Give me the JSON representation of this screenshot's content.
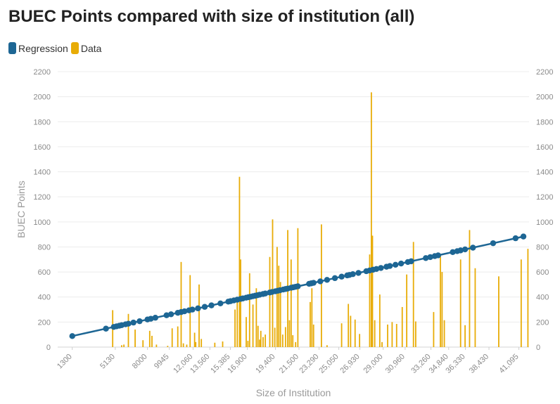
{
  "chart_data": {
    "type": "bar",
    "title": "BUEC Points compared with size of institution (all)",
    "xlabel": "Size of Institution",
    "ylabel": "BUEC Points",
    "ylim": [
      0,
      2200
    ],
    "xlim": [
      0,
      42000
    ],
    "grid": true,
    "legend": {
      "position": "top-left",
      "entries": [
        "Regression",
        "Data"
      ]
    },
    "y_ticks": [
      0,
      200,
      400,
      600,
      800,
      1000,
      1200,
      1400,
      1600,
      1800,
      2000,
      2200
    ],
    "x_ticks": [
      {
        "value": 1300,
        "label": "1300"
      },
      {
        "value": 5130,
        "label": "5130"
      },
      {
        "value": 8000,
        "label": "8000"
      },
      {
        "value": 9945,
        "label": "9945"
      },
      {
        "value": 12060,
        "label": "12,060"
      },
      {
        "value": 13560,
        "label": "13,560"
      },
      {
        "value": 15385,
        "label": "15,385"
      },
      {
        "value": 16900,
        "label": "16,900"
      },
      {
        "value": 19400,
        "label": "19,400"
      },
      {
        "value": 21500,
        "label": "21,500"
      },
      {
        "value": 23290,
        "label": "23,290"
      },
      {
        "value": 25050,
        "label": "25,050"
      },
      {
        "value": 26930,
        "label": "26,930"
      },
      {
        "value": 29000,
        "label": "29,000"
      },
      {
        "value": 30960,
        "label": "30,960"
      },
      {
        "value": 33260,
        "label": "33,260"
      },
      {
        "value": 34840,
        "label": "34,840"
      },
      {
        "value": 36330,
        "label": "36,330"
      },
      {
        "value": 38430,
        "label": "38,430"
      },
      {
        "value": 41095,
        "label": "41,095"
      }
    ],
    "series": [
      {
        "name": "Data",
        "color": "#e8ac07",
        "points": [
          {
            "x": 4900,
            "y": 295
          },
          {
            "x": 5700,
            "y": 15
          },
          {
            "x": 5900,
            "y": 20
          },
          {
            "x": 6300,
            "y": 265
          },
          {
            "x": 6900,
            "y": 140
          },
          {
            "x": 7600,
            "y": 55
          },
          {
            "x": 8200,
            "y": 130
          },
          {
            "x": 8400,
            "y": 90
          },
          {
            "x": 8800,
            "y": 20
          },
          {
            "x": 9800,
            "y": 10
          },
          {
            "x": 10200,
            "y": 150
          },
          {
            "x": 10700,
            "y": 165
          },
          {
            "x": 11000,
            "y": 680
          },
          {
            "x": 11200,
            "y": 30
          },
          {
            "x": 11500,
            "y": 20
          },
          {
            "x": 11800,
            "y": 575
          },
          {
            "x": 12200,
            "y": 115
          },
          {
            "x": 12300,
            "y": 40
          },
          {
            "x": 12600,
            "y": 500
          },
          {
            "x": 12800,
            "y": 65
          },
          {
            "x": 14000,
            "y": 35
          },
          {
            "x": 14700,
            "y": 45
          },
          {
            "x": 15800,
            "y": 300
          },
          {
            "x": 16000,
            "y": 380
          },
          {
            "x": 16200,
            "y": 1360
          },
          {
            "x": 16300,
            "y": 700
          },
          {
            "x": 16800,
            "y": 240
          },
          {
            "x": 16950,
            "y": 50
          },
          {
            "x": 17100,
            "y": 590
          },
          {
            "x": 17400,
            "y": 340
          },
          {
            "x": 17700,
            "y": 470
          },
          {
            "x": 17850,
            "y": 170
          },
          {
            "x": 18000,
            "y": 60
          },
          {
            "x": 18100,
            "y": 130
          },
          {
            "x": 18300,
            "y": 80
          },
          {
            "x": 18500,
            "y": 100
          },
          {
            "x": 18900,
            "y": 720
          },
          {
            "x": 19150,
            "y": 1020
          },
          {
            "x": 19350,
            "y": 155
          },
          {
            "x": 19550,
            "y": 800
          },
          {
            "x": 19700,
            "y": 650
          },
          {
            "x": 19850,
            "y": 520
          },
          {
            "x": 20050,
            "y": 100
          },
          {
            "x": 20300,
            "y": 160
          },
          {
            "x": 20500,
            "y": 935
          },
          {
            "x": 20650,
            "y": 215
          },
          {
            "x": 20800,
            "y": 700
          },
          {
            "x": 20950,
            "y": 95
          },
          {
            "x": 21200,
            "y": 40
          },
          {
            "x": 21400,
            "y": 950
          },
          {
            "x": 22500,
            "y": 360
          },
          {
            "x": 22650,
            "y": 470
          },
          {
            "x": 22800,
            "y": 180
          },
          {
            "x": 23500,
            "y": 980
          },
          {
            "x": 24000,
            "y": 15
          },
          {
            "x": 25300,
            "y": 190
          },
          {
            "x": 25900,
            "y": 345
          },
          {
            "x": 26100,
            "y": 250
          },
          {
            "x": 26500,
            "y": 220
          },
          {
            "x": 26900,
            "y": 105
          },
          {
            "x": 27800,
            "y": 740
          },
          {
            "x": 27950,
            "y": 2035
          },
          {
            "x": 28050,
            "y": 890
          },
          {
            "x": 28250,
            "y": 215
          },
          {
            "x": 28700,
            "y": 420
          },
          {
            "x": 28900,
            "y": 40
          },
          {
            "x": 29400,
            "y": 180
          },
          {
            "x": 29800,
            "y": 200
          },
          {
            "x": 30200,
            "y": 185
          },
          {
            "x": 30700,
            "y": 320
          },
          {
            "x": 31100,
            "y": 580
          },
          {
            "x": 31700,
            "y": 840
          },
          {
            "x": 31900,
            "y": 205
          },
          {
            "x": 33500,
            "y": 280
          },
          {
            "x": 34100,
            "y": 740
          },
          {
            "x": 34250,
            "y": 600
          },
          {
            "x": 34450,
            "y": 215
          },
          {
            "x": 35900,
            "y": 700
          },
          {
            "x": 36300,
            "y": 175
          },
          {
            "x": 36700,
            "y": 935
          },
          {
            "x": 37200,
            "y": 630
          },
          {
            "x": 39300,
            "y": 565
          },
          {
            "x": 41300,
            "y": 700
          },
          {
            "x": 41900,
            "y": 785
          }
        ]
      },
      {
        "name": "Regression",
        "color": "#1d6694",
        "slope": 0.01978,
        "intercept": 62.3,
        "x": [
          1300,
          4300,
          5000,
          5250,
          5500,
          5700,
          6050,
          6300,
          6750,
          7300,
          8000,
          8300,
          8700,
          9700,
          10100,
          10700,
          11000,
          11300,
          11700,
          12000,
          12500,
          13100,
          13700,
          14500,
          15200,
          15400,
          15700,
          16000,
          16300,
          16500,
          16800,
          17000,
          17200,
          17400,
          17600,
          17800,
          18000,
          18300,
          18500,
          18900,
          19100,
          19400,
          19600,
          19800,
          20100,
          20300,
          20500,
          20800,
          21000,
          21200,
          21400,
          22400,
          22600,
          22800,
          23400,
          24000,
          24700,
          25300,
          25800,
          26000,
          26300,
          26800,
          27500,
          27800,
          28100,
          28400,
          28800,
          29300,
          29600,
          30100,
          30600,
          31200,
          31500,
          32800,
          33200,
          33600,
          33900,
          35200,
          35600,
          35900,
          36300,
          37000,
          38800,
          40800,
          41500
        ]
      }
    ]
  }
}
